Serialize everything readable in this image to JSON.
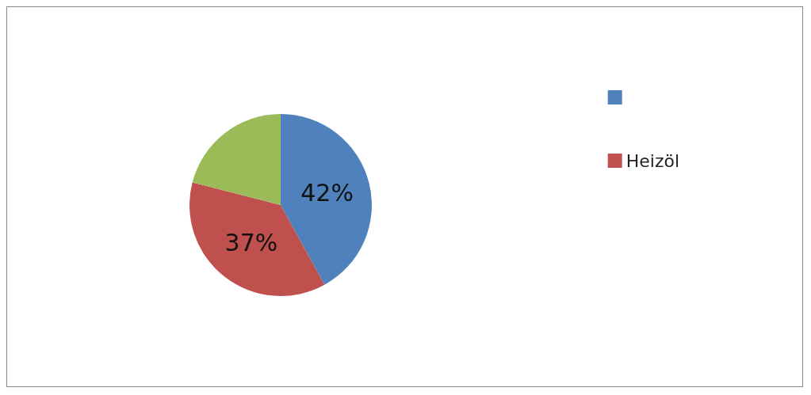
{
  "chart_data": {
    "type": "pie",
    "categories": [
      null,
      "Heizöl",
      null
    ],
    "values": [
      42,
      37,
      21
    ],
    "colors": [
      "#4f81bd",
      "#c0504d",
      "#9bbb59"
    ],
    "value_labels": [
      "42%",
      "37%",
      null
    ],
    "legend": "right"
  }
}
